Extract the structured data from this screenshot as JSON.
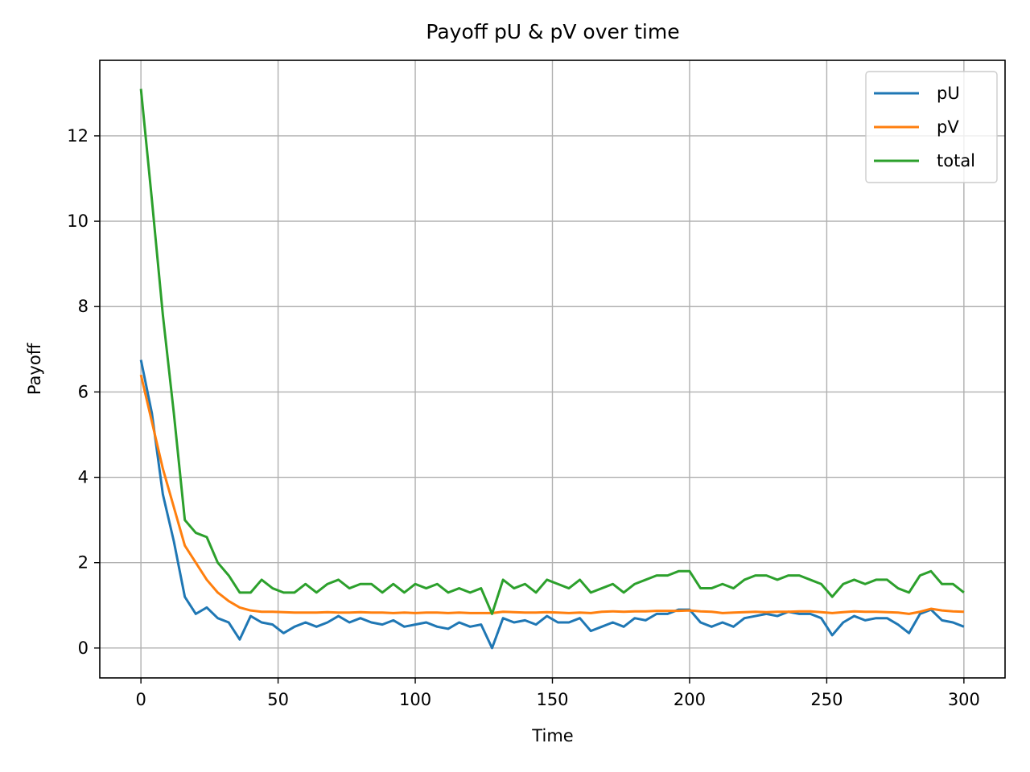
{
  "chart_data": {
    "type": "line",
    "title": "Payoff pU & pV over time",
    "xlabel": "Time",
    "ylabel": "Payoff",
    "x": [
      0,
      4,
      8,
      12,
      16,
      20,
      24,
      28,
      32,
      36,
      40,
      44,
      48,
      52,
      56,
      60,
      64,
      68,
      72,
      76,
      80,
      84,
      88,
      92,
      96,
      100,
      104,
      108,
      112,
      116,
      120,
      124,
      128,
      132,
      136,
      140,
      144,
      148,
      152,
      156,
      160,
      164,
      168,
      172,
      176,
      180,
      184,
      188,
      192,
      196,
      200,
      204,
      208,
      212,
      216,
      220,
      224,
      228,
      232,
      236,
      240,
      244,
      248,
      252,
      256,
      260,
      264,
      268,
      272,
      276,
      280,
      284,
      288,
      292,
      296,
      300
    ],
    "series": [
      {
        "name": "pU",
        "color": "#1f77b4",
        "values": [
          6.75,
          5.5,
          3.6,
          2.5,
          1.2,
          0.8,
          0.95,
          0.7,
          0.6,
          0.2,
          0.75,
          0.6,
          0.55,
          0.35,
          0.5,
          0.6,
          0.5,
          0.6,
          0.75,
          0.6,
          0.7,
          0.6,
          0.55,
          0.65,
          0.5,
          0.55,
          0.6,
          0.5,
          0.45,
          0.6,
          0.5,
          0.55,
          0.0,
          0.7,
          0.6,
          0.65,
          0.55,
          0.75,
          0.6,
          0.6,
          0.7,
          0.4,
          0.5,
          0.6,
          0.5,
          0.7,
          0.65,
          0.8,
          0.8,
          0.9,
          0.9,
          0.6,
          0.5,
          0.6,
          0.5,
          0.7,
          0.75,
          0.8,
          0.75,
          0.85,
          0.8,
          0.8,
          0.7,
          0.3,
          0.6,
          0.75,
          0.65,
          0.7,
          0.7,
          0.55,
          0.35,
          0.8,
          0.9,
          0.65,
          0.6,
          0.5
        ]
      },
      {
        "name": "pV",
        "color": "#ff7f0e",
        "values": [
          6.4,
          5.3,
          4.2,
          3.3,
          2.4,
          2.0,
          1.6,
          1.3,
          1.1,
          0.95,
          0.88,
          0.85,
          0.85,
          0.84,
          0.83,
          0.83,
          0.83,
          0.84,
          0.83,
          0.83,
          0.84,
          0.83,
          0.83,
          0.82,
          0.83,
          0.82,
          0.83,
          0.83,
          0.82,
          0.83,
          0.82,
          0.82,
          0.82,
          0.85,
          0.84,
          0.83,
          0.83,
          0.84,
          0.83,
          0.82,
          0.83,
          0.82,
          0.85,
          0.86,
          0.85,
          0.86,
          0.86,
          0.87,
          0.87,
          0.87,
          0.88,
          0.86,
          0.85,
          0.82,
          0.83,
          0.84,
          0.85,
          0.84,
          0.85,
          0.85,
          0.86,
          0.86,
          0.84,
          0.82,
          0.84,
          0.86,
          0.85,
          0.85,
          0.84,
          0.83,
          0.8,
          0.85,
          0.92,
          0.88,
          0.86,
          0.85
        ]
      },
      {
        "name": "total",
        "color": "#2ca02c",
        "values": [
          13.1,
          10.5,
          7.8,
          5.5,
          3.0,
          2.7,
          2.6,
          2.0,
          1.7,
          1.3,
          1.3,
          1.6,
          1.4,
          1.3,
          1.3,
          1.5,
          1.3,
          1.5,
          1.6,
          1.4,
          1.5,
          1.5,
          1.3,
          1.5,
          1.3,
          1.5,
          1.4,
          1.5,
          1.3,
          1.4,
          1.3,
          1.4,
          0.8,
          1.6,
          1.4,
          1.5,
          1.3,
          1.6,
          1.5,
          1.4,
          1.6,
          1.3,
          1.4,
          1.5,
          1.3,
          1.5,
          1.6,
          1.7,
          1.7,
          1.8,
          1.8,
          1.4,
          1.4,
          1.5,
          1.4,
          1.6,
          1.7,
          1.7,
          1.6,
          1.7,
          1.7,
          1.6,
          1.5,
          1.2,
          1.5,
          1.6,
          1.5,
          1.6,
          1.6,
          1.4,
          1.3,
          1.7,
          1.8,
          1.5,
          1.5,
          1.3
        ]
      }
    ],
    "xlim": [
      -15,
      315
    ],
    "ylim": [
      -0.7,
      13.77
    ],
    "xticks": [
      0,
      50,
      100,
      150,
      200,
      250,
      300
    ],
    "yticks": [
      0,
      2,
      4,
      6,
      8,
      10,
      12
    ],
    "grid": true,
    "legend": "upper-right"
  }
}
